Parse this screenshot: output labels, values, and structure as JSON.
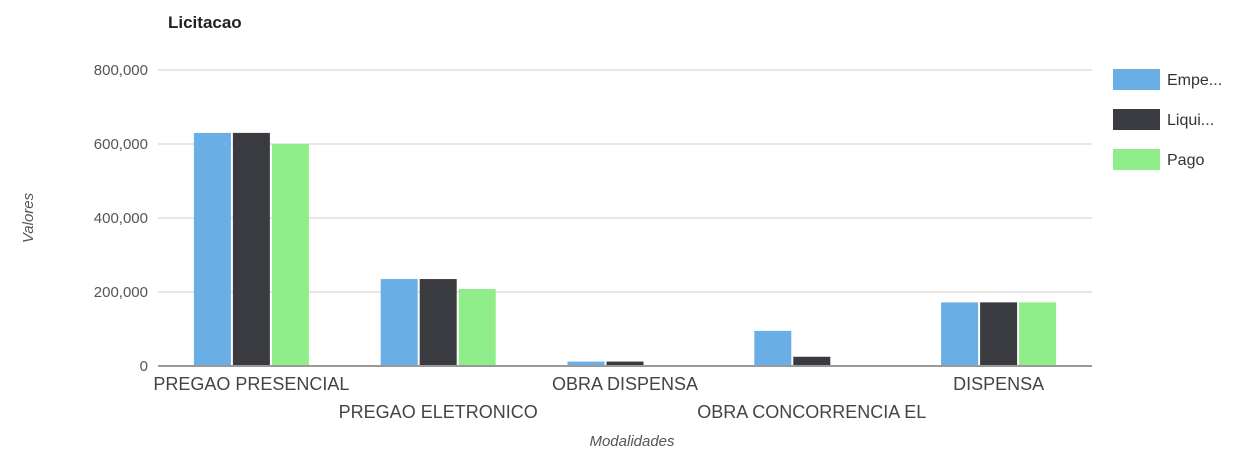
{
  "chart_data": {
    "type": "bar",
    "title": "Licitacao",
    "xlabel": "Modalidades",
    "ylabel": "Valores",
    "ylim": [
      0,
      800000
    ],
    "yticks": [
      0,
      200000,
      400000,
      600000,
      800000
    ],
    "ytick_labels": [
      "0",
      "200,000",
      "400,000",
      "600,000",
      "800,000"
    ],
    "grid": true,
    "legend_position": "right",
    "categories": [
      "PREGAO PRESENCIAL",
      "PREGAO ELETRONICO",
      "OBRA DISPENSA",
      "OBRA CONCORRENCIA EL",
      "DISPENSA"
    ],
    "series": [
      {
        "name": "Empe...",
        "color": "#6aaee6",
        "values": [
          630000,
          235000,
          12000,
          95000,
          172000
        ]
      },
      {
        "name": "Liqui...",
        "color": "#3a3b40",
        "values": [
          630000,
          235000,
          12000,
          25000,
          172000
        ]
      },
      {
        "name": "Pago",
        "color": "#90ee8a",
        "values": [
          600000,
          208000,
          0,
          0,
          172000
        ]
      }
    ]
  }
}
